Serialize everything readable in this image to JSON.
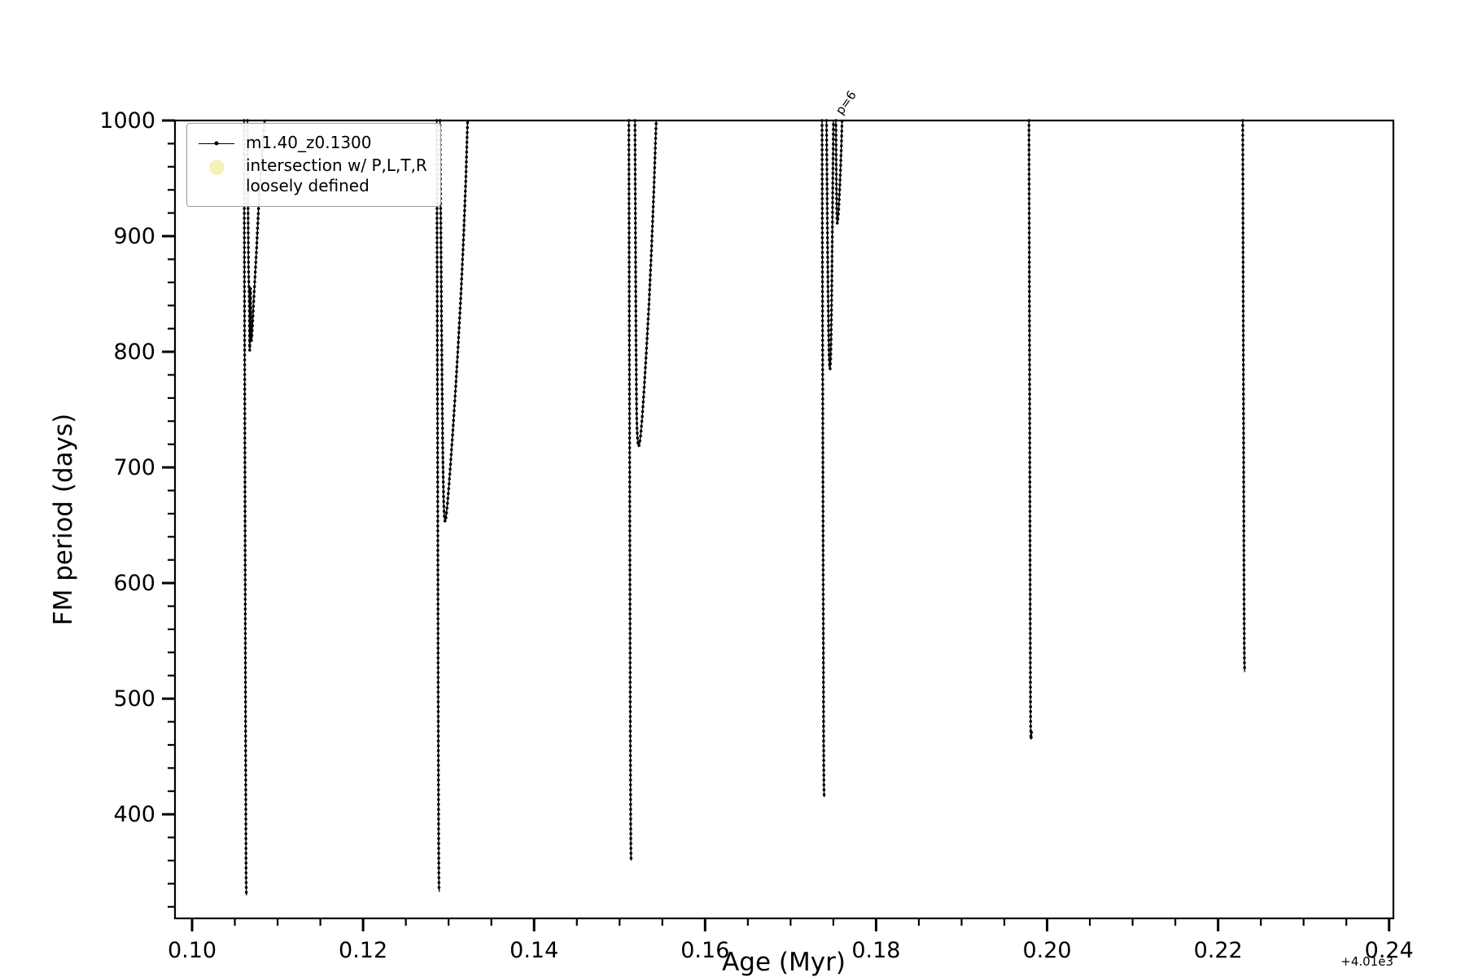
{
  "figure": {
    "xlabel": "Age (Myr)",
    "ylabel": "FM period (days)",
    "x_offset_text": "+4.01e3"
  },
  "legend": {
    "entries": [
      {
        "type": "line-dot",
        "color": "#000000",
        "label": "m1.40_z0.1300"
      },
      {
        "type": "dot",
        "color": "#f1eda2",
        "line1": "intersection w/ P,L,T,R",
        "line2": "loosely defined"
      }
    ]
  },
  "chart_data": {
    "type": "line",
    "title": "",
    "xlabel": "Age (Myr)",
    "ylabel": "FM period (days)",
    "x_offset_text": "+4.01e3",
    "xlim": [
      0.098,
      0.2405
    ],
    "ylim": [
      310,
      1000
    ],
    "xticks": [
      0.1,
      0.12,
      0.14,
      0.16,
      0.18,
      0.2,
      0.22,
      0.24
    ],
    "xtick_labels": [
      "0.10",
      "0.12",
      "0.14",
      "0.16",
      "0.18",
      "0.20",
      "0.22",
      "0.24"
    ],
    "x_minor_step": 0.005,
    "yticks": [
      400,
      500,
      600,
      700,
      800,
      900,
      1000
    ],
    "ytick_labels": [
      "400",
      "500",
      "600",
      "700",
      "800",
      "900",
      "1000"
    ],
    "y_minor_step": 20,
    "grid": false,
    "legend_position": "upper left",
    "annotations": [
      {
        "text": "p=6",
        "x": 0.176,
        "y": 1004,
        "rotation": -55
      }
    ],
    "series": [
      {
        "name": "m1.40_z0.1300",
        "color": "#000000",
        "marker": "point",
        "segments": [
          [
            [
              0.10608,
              1000
            ],
            [
              0.1061,
              940
            ],
            [
              0.10612,
              880
            ],
            [
              0.10614,
              820
            ],
            [
              0.10616,
              760
            ],
            [
              0.10618,
              700
            ],
            [
              0.1062,
              640
            ],
            [
              0.10622,
              580
            ],
            [
              0.10624,
              520
            ],
            [
              0.10626,
              460
            ],
            [
              0.10628,
              410
            ],
            [
              0.1063,
              370
            ],
            [
              0.10632,
              345
            ],
            [
              0.10634,
              333
            ],
            [
              0.10637,
              330
            ]
          ],
          [
            [
              0.10648,
              1000
            ],
            [
              0.10652,
              950
            ],
            [
              0.10656,
              905
            ],
            [
              0.1066,
              872
            ],
            [
              0.10664,
              857
            ],
            [
              0.10667,
              851
            ],
            [
              0.1067,
              838
            ],
            [
              0.10672,
              815
            ],
            [
              0.10674,
              801
            ],
            [
              0.10676,
              807
            ],
            [
              0.10678,
              831
            ],
            [
              0.10681,
              851
            ],
            [
              0.10683,
              855
            ],
            [
              0.10685,
              841
            ],
            [
              0.10688,
              820
            ],
            [
              0.10692,
              809
            ],
            [
              0.10698,
              812
            ],
            [
              0.10706,
              822
            ],
            [
              0.10718,
              840
            ],
            [
              0.10734,
              862
            ],
            [
              0.10755,
              890
            ],
            [
              0.1078,
              928
            ],
            [
              0.1081,
              962
            ],
            [
              0.1084,
              992
            ],
            [
              0.10848,
              1000
            ]
          ],
          [
            [
              0.12862,
              1000
            ],
            [
              0.12864,
              940
            ],
            [
              0.12866,
              880
            ],
            [
              0.12868,
              820
            ],
            [
              0.1287,
              760
            ],
            [
              0.12872,
              700
            ],
            [
              0.12874,
              640
            ],
            [
              0.12876,
              580
            ],
            [
              0.12878,
              520
            ],
            [
              0.1288,
              460
            ],
            [
              0.12882,
              410
            ],
            [
              0.12884,
              372
            ],
            [
              0.12886,
              348
            ],
            [
              0.12888,
              336
            ],
            [
              0.12891,
              333
            ]
          ],
          [
            [
              0.129,
              1000
            ],
            [
              0.12906,
              940
            ],
            [
              0.12912,
              880
            ],
            [
              0.12918,
              820
            ],
            [
              0.12924,
              770
            ],
            [
              0.1293,
              725
            ],
            [
              0.12936,
              695
            ],
            [
              0.12942,
              672
            ],
            [
              0.12948,
              660
            ],
            [
              0.12955,
              654
            ],
            [
              0.12962,
              653
            ],
            [
              0.12972,
              658
            ],
            [
              0.12986,
              668
            ],
            [
              0.13004,
              684
            ],
            [
              0.13026,
              706
            ],
            [
              0.13052,
              734
            ],
            [
              0.13082,
              768
            ],
            [
              0.13114,
              808
            ],
            [
              0.13146,
              852
            ],
            [
              0.13176,
              900
            ],
            [
              0.13202,
              950
            ],
            [
              0.13219,
              992
            ],
            [
              0.13223,
              1000
            ]
          ],
          [
            [
              0.15108,
              1000
            ],
            [
              0.1511,
              940
            ],
            [
              0.15112,
              880
            ],
            [
              0.15114,
              820
            ],
            [
              0.15116,
              760
            ],
            [
              0.15118,
              700
            ],
            [
              0.1512,
              640
            ],
            [
              0.15122,
              580
            ],
            [
              0.15124,
              520
            ],
            [
              0.15126,
              465
            ],
            [
              0.15128,
              420
            ],
            [
              0.1513,
              390
            ],
            [
              0.15132,
              370
            ],
            [
              0.15134,
              362
            ],
            [
              0.15137,
              360
            ]
          ],
          [
            [
              0.1518,
              1000
            ],
            [
              0.15184,
              930
            ],
            [
              0.15188,
              865
            ],
            [
              0.15192,
              810
            ],
            [
              0.15196,
              770
            ],
            [
              0.152,
              745
            ],
            [
              0.15204,
              733
            ],
            [
              0.15209,
              726
            ],
            [
              0.15215,
              721
            ],
            [
              0.15223,
              718
            ],
            [
              0.15233,
              720
            ],
            [
              0.15247,
              728
            ],
            [
              0.15265,
              744
            ],
            [
              0.15287,
              768
            ],
            [
              0.15313,
              800
            ],
            [
              0.15343,
              840
            ],
            [
              0.15373,
              888
            ],
            [
              0.15401,
              940
            ],
            [
              0.15423,
              988
            ],
            [
              0.15429,
              1000
            ]
          ],
          [
            [
              0.17368,
              1000
            ],
            [
              0.1737,
              940
            ],
            [
              0.17372,
              880
            ],
            [
              0.17374,
              820
            ],
            [
              0.17376,
              760
            ],
            [
              0.17378,
              700
            ],
            [
              0.1738,
              640
            ],
            [
              0.17382,
              580
            ],
            [
              0.17384,
              520
            ],
            [
              0.17386,
              470
            ],
            [
              0.17388,
              440
            ],
            [
              0.1739,
              424
            ],
            [
              0.17392,
              417
            ],
            [
              0.17395,
              415
            ]
          ],
          [
            [
              0.1742,
              1000
            ],
            [
              0.17426,
              945
            ],
            [
              0.17432,
              895
            ],
            [
              0.17438,
              852
            ],
            [
              0.17444,
              818
            ],
            [
              0.1745,
              797
            ],
            [
              0.17456,
              786
            ],
            [
              0.17462,
              785
            ],
            [
              0.17468,
              792
            ],
            [
              0.17474,
              812
            ],
            [
              0.1748,
              845
            ],
            [
              0.17486,
              888
            ],
            [
              0.17492,
              935
            ],
            [
              0.17498,
              978
            ],
            [
              0.17501,
              1000
            ]
          ],
          [
            [
              0.1753,
              1000
            ],
            [
              0.17533,
              968
            ],
            [
              0.17536,
              942
            ],
            [
              0.17539,
              925
            ],
            [
              0.17542,
              915
            ],
            [
              0.17546,
              911
            ],
            [
              0.17552,
              913
            ],
            [
              0.1756,
              920
            ],
            [
              0.1757,
              934
            ],
            [
              0.17582,
              954
            ],
            [
              0.17594,
              978
            ],
            [
              0.17602,
              1000
            ]
          ],
          [
            [
              0.19788,
              1000
            ],
            [
              0.1979,
              940
            ],
            [
              0.19792,
              880
            ],
            [
              0.19794,
              820
            ],
            [
              0.19796,
              760
            ],
            [
              0.19798,
              700
            ],
            [
              0.198,
              640
            ],
            [
              0.19802,
              580
            ],
            [
              0.19804,
              530
            ],
            [
              0.19806,
              496
            ],
            [
              0.19808,
              476
            ],
            [
              0.1981,
              467
            ],
            [
              0.19813,
              465
            ],
            [
              0.19816,
              469
            ],
            [
              0.19818,
              473
            ]
          ],
          [
            [
              0.22288,
              1000
            ],
            [
              0.2229,
              945
            ],
            [
              0.22292,
              890
            ],
            [
              0.22294,
              835
            ],
            [
              0.22296,
              780
            ],
            [
              0.22298,
              725
            ],
            [
              0.223,
              670
            ],
            [
              0.22302,
              620
            ],
            [
              0.22304,
              578
            ],
            [
              0.22306,
              548
            ],
            [
              0.22308,
              532
            ],
            [
              0.2231,
              525
            ],
            [
              0.22313,
              523
            ]
          ]
        ]
      }
    ]
  }
}
